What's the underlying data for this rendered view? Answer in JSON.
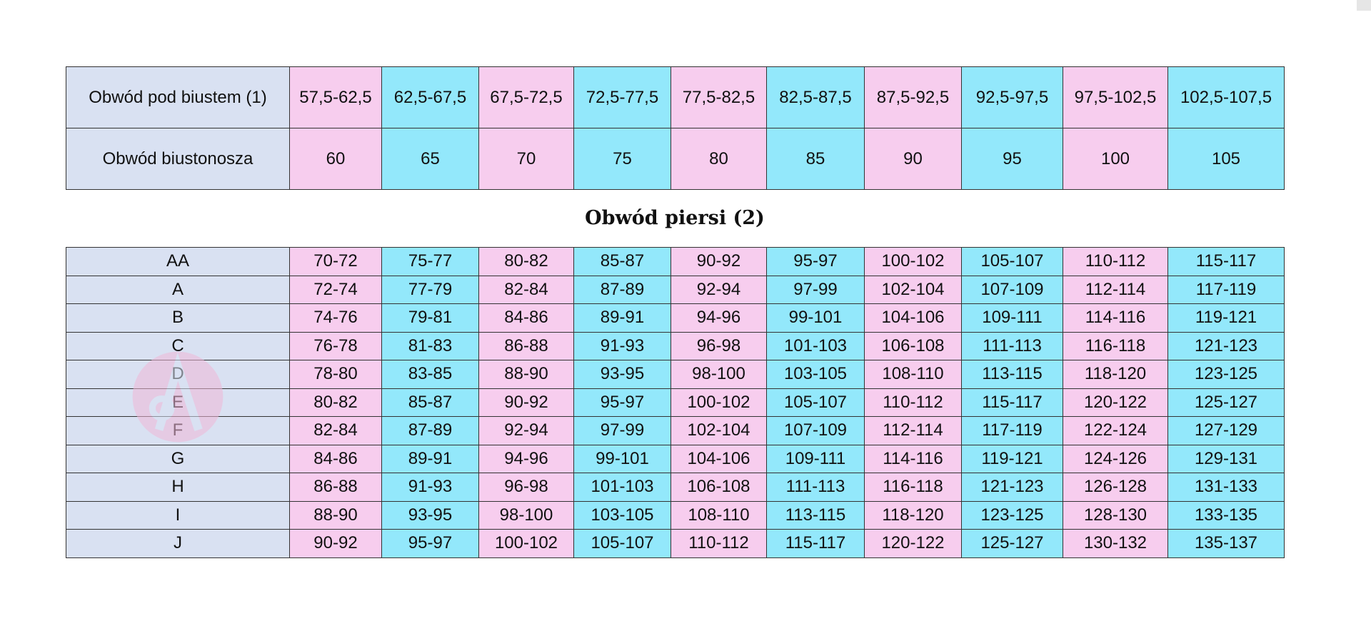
{
  "colors": {
    "label": "#d9e1f2",
    "pink": "#f7cdee",
    "cyan": "#93e8fb"
  },
  "top_table": {
    "rows": [
      {
        "label": "Obwód pod biustem (1)",
        "values": [
          "57,5-62,5",
          "62,5-67,5",
          "67,5-72,5",
          "72,5-77,5",
          "77,5-82,5",
          "82,5-87,5",
          "87,5-92,5",
          "92,5-97,5",
          "97,5-102,5",
          "102,5-107,5"
        ]
      },
      {
        "label": "Obwód biustonosza",
        "values": [
          "60",
          "65",
          "70",
          "75",
          "80",
          "85",
          "90",
          "95",
          "100",
          "105"
        ]
      }
    ]
  },
  "title": "Obwód piersi (2)",
  "cup_table": {
    "rows": [
      {
        "label": "AA",
        "values": [
          "70-72",
          "75-77",
          "80-82",
          "85-87",
          "90-92",
          "95-97",
          "100-102",
          "105-107",
          "110-112",
          "115-117"
        ]
      },
      {
        "label": "A",
        "values": [
          "72-74",
          "77-79",
          "82-84",
          "87-89",
          "92-94",
          "97-99",
          "102-104",
          "107-109",
          "112-114",
          "117-119"
        ]
      },
      {
        "label": "B",
        "values": [
          "74-76",
          "79-81",
          "84-86",
          "89-91",
          "94-96",
          "99-101",
          "104-106",
          "109-111",
          "114-116",
          "119-121"
        ]
      },
      {
        "label": "C",
        "values": [
          "76-78",
          "81-83",
          "86-88",
          "91-93",
          "96-98",
          "101-103",
          "106-108",
          "111-113",
          "116-118",
          "121-123"
        ]
      },
      {
        "label": "D",
        "values": [
          "78-80",
          "83-85",
          "88-90",
          "93-95",
          "98-100",
          "103-105",
          "108-110",
          "113-115",
          "118-120",
          "123-125"
        ]
      },
      {
        "label": "E",
        "values": [
          "80-82",
          "85-87",
          "90-92",
          "95-97",
          "100-102",
          "105-107",
          "110-112",
          "115-117",
          "120-122",
          "125-127"
        ]
      },
      {
        "label": "F",
        "values": [
          "82-84",
          "87-89",
          "92-94",
          "97-99",
          "102-104",
          "107-109",
          "112-114",
          "117-119",
          "122-124",
          "127-129"
        ]
      },
      {
        "label": "G",
        "values": [
          "84-86",
          "89-91",
          "94-96",
          "99-101",
          "104-106",
          "109-111",
          "114-116",
          "119-121",
          "124-126",
          "129-131"
        ]
      },
      {
        "label": "H",
        "values": [
          "86-88",
          "91-93",
          "96-98",
          "101-103",
          "106-108",
          "111-113",
          "116-118",
          "121-123",
          "126-128",
          "131-133"
        ]
      },
      {
        "label": "I",
        "values": [
          "88-90",
          "93-95",
          "98-100",
          "103-105",
          "108-110",
          "113-115",
          "118-120",
          "123-125",
          "128-130",
          "133-135"
        ]
      },
      {
        "label": "J",
        "values": [
          "90-92",
          "95-97",
          "100-102",
          "105-107",
          "110-112",
          "115-117",
          "120-122",
          "125-127",
          "130-132",
          "135-137"
        ]
      }
    ]
  },
  "watermark": {
    "icon": "letter-a-logo",
    "text": "A"
  }
}
